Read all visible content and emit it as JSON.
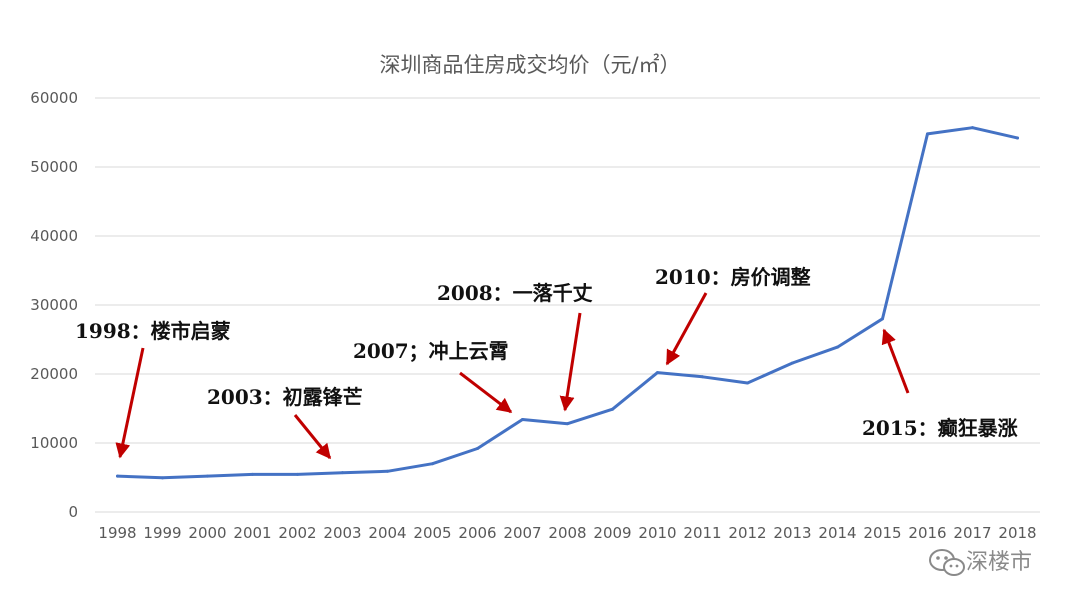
{
  "chart_data": {
    "type": "line",
    "title": "深圳商品住房成交均价（元/㎡）",
    "xlabel": "",
    "ylabel": "",
    "categories": [
      "1998",
      "1999",
      "2000",
      "2001",
      "2002",
      "2003",
      "2004",
      "2005",
      "2006",
      "2007",
      "2008",
      "2009",
      "2010",
      "2011",
      "2012",
      "2013",
      "2014",
      "2015",
      "2016",
      "2017",
      "2018"
    ],
    "series": [
      {
        "values": [
          5200,
          4950,
          5200,
          5450,
          5450,
          5700,
          5900,
          7000,
          9200,
          13400,
          12800,
          14900,
          20200,
          19600,
          18700,
          21600,
          23900,
          28000,
          54800,
          55700,
          54200
        ],
        "color": "#4472C4"
      }
    ],
    "ylim": [
      0,
      60000
    ],
    "yticks": [
      "0",
      "10000",
      "20000",
      "30000",
      "40000",
      "50000",
      "60000"
    ],
    "grid": true,
    "legend": "none",
    "annotations": [
      {
        "text": "1998：楼市启蒙",
        "x": "1998"
      },
      {
        "text": "2003：初露锋芒",
        "x": "2003"
      },
      {
        "text": "2007；冲上云霄",
        "x": "2007"
      },
      {
        "text": "2008：一落千丈",
        "x": "2008"
      },
      {
        "text": "2010：房价调整",
        "x": "2010"
      },
      {
        "text": "2015：癫狂暴涨",
        "x": "2015"
      }
    ]
  },
  "colors": {
    "line": "#4472C4",
    "grid": "#D9D9D9",
    "arrow": "#C00000"
  },
  "watermark": {
    "text": "深楼市",
    "icon": "wechat-icon"
  }
}
